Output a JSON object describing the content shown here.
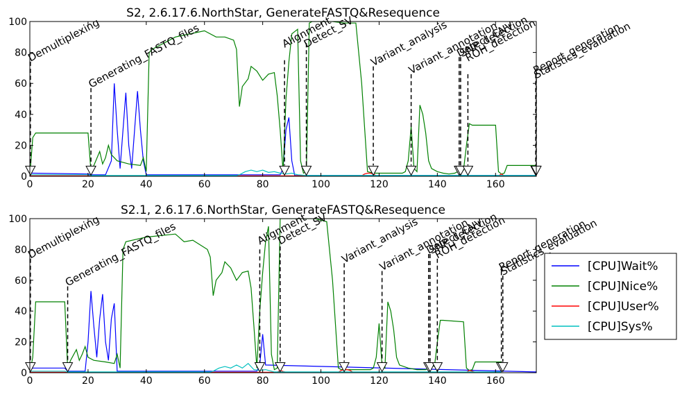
{
  "chart_data": [
    {
      "type": "line",
      "title": "S2, 2.6.17.6.NorthStar, GenerateFASTQ&Resequence",
      "xlabel": "",
      "ylabel": "",
      "xlim": [
        0,
        174
      ],
      "ylim": [
        0,
        100
      ],
      "xticks": [
        "0",
        "20",
        "40",
        "60",
        "80",
        "100",
        "120",
        "140",
        "160"
      ],
      "yticks": [
        "0",
        "20",
        "40",
        "60",
        "80",
        "100"
      ],
      "series": [
        {
          "name": "[CPU]Wait%",
          "color": "#0000ff",
          "x": [
            0,
            1,
            20,
            21,
            26,
            28,
            29,
            30,
            31,
            32,
            33,
            34,
            35,
            36,
            37,
            38,
            39,
            40,
            86,
            87,
            88,
            89,
            90,
            91,
            174
          ],
          "y": [
            2,
            2,
            1.5,
            1,
            1,
            10,
            60,
            30,
            5,
            30,
            54,
            20,
            5,
            30,
            55,
            30,
            10,
            1,
            1,
            5,
            30,
            38,
            10,
            0.5,
            0.5
          ]
        },
        {
          "name": "[CPU]Nice%",
          "color": "#008000",
          "x": [
            0,
            1,
            2,
            20,
            21,
            22,
            24,
            25,
            26,
            27,
            28,
            30,
            34,
            38,
            39,
            40,
            41,
            42,
            50,
            60,
            64,
            67,
            70,
            71,
            72,
            73,
            75,
            76,
            78,
            80,
            82,
            84,
            85,
            86,
            87,
            88,
            89,
            90,
            92,
            93,
            94,
            95,
            96,
            97,
            98,
            100,
            104,
            108,
            112,
            114,
            116,
            118,
            128,
            129,
            130,
            131,
            132,
            133,
            134,
            135,
            136,
            137,
            138,
            140,
            142,
            144,
            146,
            147,
            148,
            149,
            150,
            151,
            152,
            160,
            161,
            162,
            163,
            164,
            172,
            174
          ],
          "y": [
            0,
            25,
            28,
            28,
            3,
            7,
            16,
            8,
            12,
            20,
            14,
            10,
            8,
            7,
            12,
            3,
            80,
            82,
            90,
            94,
            90,
            90,
            88,
            82,
            45,
            58,
            63,
            71,
            68,
            62,
            66,
            67,
            52,
            30,
            3,
            50,
            74,
            92,
            95,
            10,
            2,
            3,
            99,
            100,
            100,
            100,
            100,
            99,
            99,
            60,
            3,
            2,
            2,
            3,
            10,
            32,
            5,
            3,
            46,
            40,
            28,
            10,
            5,
            3,
            2,
            1.5,
            2,
            3,
            5,
            4,
            20,
            34,
            33,
            33,
            3,
            1.5,
            2,
            7,
            7,
            7
          ]
        },
        {
          "name": "[CPU]User%",
          "color": "#ff0000",
          "x": [
            0,
            114,
            115,
            116,
            117,
            118,
            119,
            120,
            161,
            162,
            163,
            174
          ],
          "y": [
            0.3,
            0.3,
            1.5,
            2,
            2,
            1.5,
            0.3,
            0.3,
            0.3,
            1.5,
            0.3,
            0.3
          ]
        },
        {
          "name": "[CPU]Sys%",
          "color": "#00bfbf",
          "x": [
            0,
            20,
            21,
            40,
            71,
            72,
            74,
            76,
            78,
            80,
            82,
            84,
            86,
            88,
            90,
            92,
            95,
            100,
            110,
            174
          ],
          "y": [
            1,
            1,
            0.5,
            0.5,
            0.5,
            1,
            3,
            4,
            3,
            4,
            2.5,
            3,
            2,
            1.5,
            2,
            1,
            0.5,
            0.5,
            0.5,
            0.5
          ]
        }
      ],
      "annotations": [
        {
          "text": "Demultiplexing",
          "x": 0.2,
          "y": 74
        },
        {
          "text": "Generating_FASTQ_files",
          "x": 21,
          "y": 57
        },
        {
          "text": "Alignment",
          "x": 87.5,
          "y": 83
        },
        {
          "text": "Detect_SV",
          "x": 95,
          "y": 83
        },
        {
          "text": "Variant_analysis",
          "x": 118,
          "y": 71
        },
        {
          "text": "Variant_annotation",
          "x": 131,
          "y": 66
        },
        {
          "text": "Detect_CNV",
          "x": 147.5,
          "y": 77
        },
        {
          "text": "SNP_detection",
          "x": 148.5,
          "y": 77
        },
        {
          "text": "ROH_detection",
          "x": 150.5,
          "y": 74
        },
        {
          "text": "Report_generation",
          "x": 173.8,
          "y": 66
        },
        {
          "text": "Statistics_evaluation",
          "x": 174,
          "y": 63
        }
      ],
      "markers": [
        {
          "x": 0.2,
          "y1": 74,
          "y2": 7
        },
        {
          "x": 21,
          "y1": 57,
          "y2": 7
        },
        {
          "x": 87.5,
          "y1": 75,
          "y2": 7
        },
        {
          "x": 95,
          "y1": 86,
          "y2": 7
        },
        {
          "x": 118,
          "y1": 71,
          "y2": 7
        },
        {
          "x": 131,
          "y1": 66,
          "y2": 7
        },
        {
          "x": 147.5,
          "y1": 77,
          "y2": 7
        },
        {
          "x": 148,
          "y1": 77,
          "y2": 7
        },
        {
          "x": 150.5,
          "y1": 66,
          "y2": 7
        },
        {
          "x": 173.8,
          "y1": 66,
          "y2": 7
        },
        {
          "x": 174,
          "y1": 63,
          "y2": 7
        }
      ],
      "legend": false
    },
    {
      "type": "line",
      "title": "S2.1, 2.6.17.6.NorthStar, GenerateFASTQ&Resequence",
      "xlabel": "",
      "ylabel": "",
      "xlim": [
        0,
        174
      ],
      "ylim": [
        0,
        100
      ],
      "xticks": [
        "0",
        "20",
        "40",
        "60",
        "80",
        "100",
        "120",
        "140",
        "160"
      ],
      "yticks": [
        "0",
        "20",
        "40",
        "60",
        "80",
        "100"
      ],
      "series": [
        {
          "name": "[CPU]Wait%",
          "color": "#0000ff",
          "x": [
            0,
            1,
            12,
            13,
            19,
            20,
            21,
            22,
            23,
            24,
            25,
            26,
            27,
            28,
            29,
            30,
            78,
            79,
            80,
            81,
            174
          ],
          "y": [
            2,
            3,
            3,
            1,
            1,
            20,
            53,
            30,
            10,
            35,
            51,
            20,
            8,
            35,
            45,
            1,
            1,
            5,
            25,
            5,
            0.5
          ]
        },
        {
          "name": "[CPU]Nice%",
          "color": "#008000",
          "x": [
            0,
            1,
            2,
            12,
            13,
            14,
            16,
            17,
            18,
            19,
            20,
            22,
            26,
            29,
            30,
            31,
            32,
            33,
            40,
            50,
            53,
            56,
            61,
            62,
            63,
            64,
            66,
            67,
            69,
            71,
            73,
            75,
            76,
            77,
            78,
            79,
            80,
            81,
            82,
            83,
            84,
            85,
            86,
            87,
            88,
            90,
            94,
            98,
            102,
            104,
            106,
            107,
            117,
            118,
            119,
            120,
            121,
            122,
            123,
            124,
            125,
            126,
            127,
            130,
            133,
            135,
            136,
            137,
            138,
            139,
            140,
            141,
            142,
            149,
            150,
            151,
            152,
            153,
            161,
            162
          ],
          "y": [
            0,
            10,
            46,
            46,
            3,
            8,
            15,
            8,
            12,
            17,
            10,
            8,
            7,
            6,
            12,
            3,
            80,
            85,
            88,
            90,
            85,
            86,
            80,
            75,
            50,
            60,
            65,
            72,
            68,
            60,
            65,
            66,
            55,
            30,
            3,
            40,
            65,
            85,
            95,
            12,
            2,
            3,
            100,
            100,
            100,
            100,
            100,
            100,
            98,
            60,
            3,
            2,
            2,
            3,
            10,
            32,
            5,
            3,
            46,
            40,
            28,
            10,
            5,
            3,
            2,
            2,
            2,
            3,
            5,
            4,
            20,
            34,
            34,
            33,
            3,
            1.5,
            2,
            7,
            7,
            7
          ]
        },
        {
          "name": "[CPU]User%",
          "color": "#ff0000",
          "x": [
            0,
            85,
            86,
            87,
            88,
            106,
            107,
            108,
            109,
            110,
            111,
            150,
            151,
            152,
            153,
            162
          ],
          "y": [
            0.3,
            0.3,
            1.5,
            0.8,
            0.3,
            0.3,
            1.5,
            2,
            2,
            1.5,
            0.3,
            0.3,
            1.5,
            1,
            0.3,
            0.3
          ]
        },
        {
          "name": "[CPU]Sys%",
          "color": "#00bfbf",
          "x": [
            0,
            12,
            13,
            30,
            62,
            63,
            65,
            67,
            69,
            71,
            73,
            75,
            77,
            79,
            81,
            84,
            90,
            100,
            162
          ],
          "y": [
            1,
            1,
            0.5,
            0.5,
            0.5,
            1,
            3,
            4,
            3,
            5,
            3,
            6,
            2,
            1.5,
            2,
            0.5,
            0.5,
            0.5,
            0.5
          ]
        }
      ],
      "annotations": [
        {
          "text": "Demultiplexing",
          "x": 0.2,
          "y": 74
        },
        {
          "text": "Generating_FASTQ_files",
          "x": 13,
          "y": 56
        },
        {
          "text": "Alignment",
          "x": 79,
          "y": 83
        },
        {
          "text": "Detect_SV",
          "x": 86,
          "y": 83
        },
        {
          "text": "Variant_analysis",
          "x": 108,
          "y": 71
        },
        {
          "text": "Variant_annotation",
          "x": 121,
          "y": 66
        },
        {
          "text": "Detect_CNV",
          "x": 137,
          "y": 77
        },
        {
          "text": "SNP_detection",
          "x": 138,
          "y": 77
        },
        {
          "text": "ROH_detection",
          "x": 140,
          "y": 74
        },
        {
          "text": "Report_generation",
          "x": 162,
          "y": 66
        },
        {
          "text": "Statistics_evaluation",
          "x": 162.5,
          "y": 63
        }
      ],
      "markers": [
        {
          "x": 0.2,
          "y1": 74,
          "y2": 7
        },
        {
          "x": 13,
          "y1": 56,
          "y2": 7
        },
        {
          "x": 79,
          "y1": 80,
          "y2": 7
        },
        {
          "x": 86,
          "y1": 82,
          "y2": 7
        },
        {
          "x": 108,
          "y1": 71,
          "y2": 7
        },
        {
          "x": 121,
          "y1": 66,
          "y2": 7
        },
        {
          "x": 137,
          "y1": 77,
          "y2": 7
        },
        {
          "x": 137.5,
          "y1": 77,
          "y2": 7
        },
        {
          "x": 140,
          "y1": 74,
          "y2": 7
        },
        {
          "x": 162,
          "y1": 66,
          "y2": 7
        },
        {
          "x": 162.5,
          "y1": 63,
          "y2": 7
        }
      ],
      "legend": true,
      "legend_location": "right"
    }
  ]
}
